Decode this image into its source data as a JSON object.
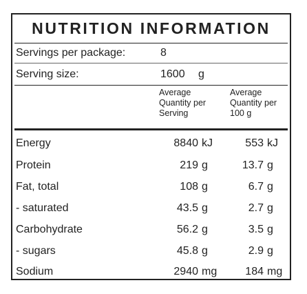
{
  "title": "NUTRITION INFORMATION",
  "servings": {
    "label": "Servings per package:",
    "value": "8"
  },
  "serving_size": {
    "label": "Serving size:",
    "value": "1600",
    "unit": "g"
  },
  "headers": {
    "per_serving": [
      "Average",
      "Quantity per",
      "Serving"
    ],
    "per_100g": [
      "Average",
      "Quantity per",
      "100 g"
    ]
  },
  "rows": [
    {
      "name": "Energy",
      "serving": "8840",
      "serving_unit": "kJ",
      "per100": "553",
      "per100_unit": "kJ"
    },
    {
      "name": "Protein",
      "serving": "219",
      "serving_unit": "g",
      "per100": "13.7",
      "per100_unit": "g"
    },
    {
      "name": "Fat, total",
      "serving": "108",
      "serving_unit": "g",
      "per100": "6.7",
      "per100_unit": "g"
    },
    {
      "name": "- saturated",
      "serving": "43.5",
      "serving_unit": "g",
      "per100": "2.7",
      "per100_unit": "g"
    },
    {
      "name": "Carbohydrate",
      "serving": "56.2",
      "serving_unit": "g",
      "per100": "3.5",
      "per100_unit": "g"
    },
    {
      "name": "- sugars",
      "serving": "45.8",
      "serving_unit": "g",
      "per100": "2.9",
      "per100_unit": "g"
    },
    {
      "name": "Sodium",
      "serving": "2940",
      "serving_unit": "mg",
      "per100": "184",
      "per100_unit": "mg"
    }
  ]
}
